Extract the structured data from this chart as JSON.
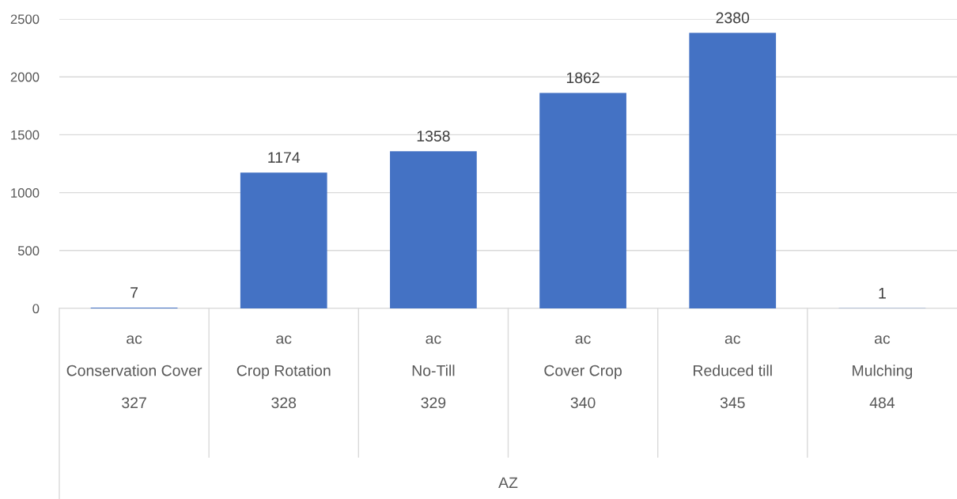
{
  "chart_data": {
    "type": "bar",
    "categories": [
      "ac\nConservation Cover\n327",
      "ac\nCrop Rotation\n328",
      "ac\nNo-Till\n329",
      "ac\nCover Crop\n340",
      "ac\nReduced till\n345",
      "ac\nMulching\n484"
    ],
    "values": [
      7,
      1174,
      1358,
      1862,
      2380,
      1
    ],
    "color": "#4472c4",
    "annotations": [
      "AZ"
    ],
    "ylim": [
      0,
      2500
    ],
    "yticks": [
      0,
      500,
      1000,
      1500,
      2000,
      2500
    ],
    "grid": "y",
    "data_labels": true,
    "legend": false
  }
}
